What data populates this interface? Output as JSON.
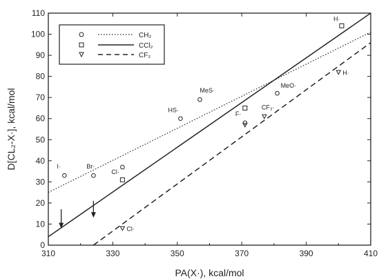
{
  "chart_data": {
    "type": "scatter",
    "xlabel": "PA(X·), kcal/mol",
    "ylabel": "D[CL₂-X·], kcal/mol",
    "xlim": [
      310,
      410
    ],
    "ylim": [
      0,
      110
    ],
    "xticks": [
      310,
      330,
      350,
      370,
      390,
      410
    ],
    "yticks": [
      0,
      10,
      20,
      30,
      40,
      50,
      60,
      70,
      80,
      90,
      100,
      110
    ],
    "grid": false,
    "legend_position": "top-left",
    "series": [
      {
        "name": "CH₂",
        "marker": "circle",
        "line_style": "dotted",
        "fit_line": [
          [
            310,
            25
          ],
          [
            410,
            101
          ]
        ],
        "points": [
          {
            "x": 315,
            "y": 33,
            "label": "I·"
          },
          {
            "x": 324,
            "y": 33,
            "label": "Br·"
          },
          {
            "x": 333,
            "y": 37,
            "label": "Cl·"
          },
          {
            "x": 351,
            "y": 60,
            "label": "HS·"
          },
          {
            "x": 357,
            "y": 69,
            "label": "MeS·"
          },
          {
            "x": 371,
            "y": 58,
            "label": "F·"
          },
          {
            "x": 381,
            "y": 72,
            "label": "MeO·"
          }
        ]
      },
      {
        "name": "CCl₂",
        "marker": "square",
        "line_style": "solid",
        "fit_line": [
          [
            310,
            4
          ],
          [
            410,
            110
          ]
        ],
        "points": [
          {
            "x": 333,
            "y": 31,
            "label": ""
          },
          {
            "x": 371,
            "y": 65,
            "label": ""
          },
          {
            "x": 401,
            "y": 104,
            "label": "H·"
          }
        ]
      },
      {
        "name": "CF₂",
        "marker": "triangle",
        "line_style": "dashed",
        "fit_line": [
          [
            324,
            0
          ],
          [
            410,
            96
          ]
        ],
        "points": [
          {
            "x": 333,
            "y": 8,
            "label": "Cl·"
          },
          {
            "x": 371,
            "y": 57,
            "label": ""
          },
          {
            "x": 377,
            "y": 61,
            "label": "CF₃·"
          },
          {
            "x": 400,
            "y": 82,
            "label": "H·"
          }
        ]
      }
    ],
    "annotations": [
      {
        "type": "arrow",
        "x": 314,
        "y_from": 17,
        "y_to": 8
      },
      {
        "type": "arrow",
        "x": 324,
        "y_from": 21,
        "y_to": 13
      }
    ]
  }
}
